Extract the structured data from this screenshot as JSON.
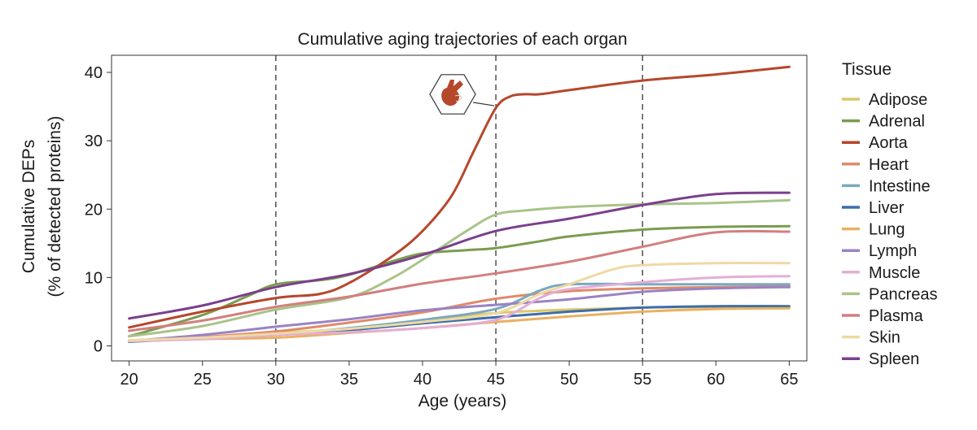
{
  "chart_data": {
    "type": "line",
    "title": "Cumulative aging trajectories of each organ",
    "xlabel": "Age (years)",
    "ylabel_lines": [
      "Cumulative DEPs",
      "(% of detected proteins)"
    ],
    "xlim": [
      18.8,
      66.2
    ],
    "ylim": [
      -2.2,
      42.5
    ],
    "xticks": [
      20,
      25,
      30,
      35,
      40,
      45,
      50,
      55,
      60,
      65
    ],
    "yticks": [
      0,
      10,
      20,
      30,
      40
    ],
    "vlines": [
      30,
      45,
      55
    ],
    "legend_title": "Tissue",
    "legend_position": "right",
    "annotation": {
      "label": "aorta-heart-icon",
      "series": "Aorta",
      "x": 45,
      "y": 35
    },
    "series": [
      {
        "name": "Adipose",
        "color": "#dcc76a",
        "points": [
          [
            20,
            0.8
          ],
          [
            25,
            1.2
          ],
          [
            30,
            1.9
          ],
          [
            35,
            2.5
          ],
          [
            40,
            3.7
          ],
          [
            45,
            4.8
          ],
          [
            50,
            5.3
          ],
          [
            55,
            5.6
          ],
          [
            60,
            5.7
          ],
          [
            65,
            5.8
          ]
        ]
      },
      {
        "name": "Adrenal",
        "color": "#7a9c4f",
        "points": [
          [
            20,
            1.4
          ],
          [
            25,
            4.5
          ],
          [
            28,
            7.2
          ],
          [
            30,
            9.0
          ],
          [
            33,
            9.6
          ],
          [
            35,
            10.4
          ],
          [
            38,
            12.4
          ],
          [
            40,
            13.5
          ],
          [
            43,
            14.0
          ],
          [
            45,
            14.3
          ],
          [
            48,
            15.3
          ],
          [
            50,
            16.0
          ],
          [
            55,
            17.0
          ],
          [
            60,
            17.4
          ],
          [
            65,
            17.5
          ]
        ]
      },
      {
        "name": "Aorta",
        "color": "#b5472c",
        "points": [
          [
            20,
            2.7
          ],
          [
            25,
            5.0
          ],
          [
            30,
            7.0
          ],
          [
            33,
            7.6
          ],
          [
            35,
            9.2
          ],
          [
            38,
            13.2
          ],
          [
            40,
            16.8
          ],
          [
            42,
            22.0
          ],
          [
            43.5,
            28.5
          ],
          [
            45,
            34.8
          ],
          [
            46,
            36.5
          ],
          [
            47,
            36.8
          ],
          [
            48,
            36.8
          ],
          [
            50,
            37.4
          ],
          [
            55,
            38.8
          ],
          [
            60,
            39.7
          ],
          [
            65,
            40.8
          ]
        ]
      },
      {
        "name": "Heart",
        "color": "#de8a6a",
        "points": [
          [
            20,
            0.7
          ],
          [
            25,
            1.3
          ],
          [
            30,
            2.1
          ],
          [
            35,
            3.4
          ],
          [
            40,
            4.9
          ],
          [
            45,
            6.9
          ],
          [
            50,
            8.0
          ],
          [
            55,
            8.4
          ],
          [
            60,
            8.6
          ],
          [
            65,
            8.7
          ]
        ]
      },
      {
        "name": "Intestine",
        "color": "#7aa8bf",
        "points": [
          [
            20,
            0.8
          ],
          [
            25,
            1.2
          ],
          [
            30,
            1.7
          ],
          [
            35,
            2.6
          ],
          [
            40,
            3.8
          ],
          [
            45,
            5.4
          ],
          [
            48,
            8.1
          ],
          [
            50,
            9.0
          ],
          [
            55,
            9.0
          ],
          [
            60,
            9.0
          ],
          [
            65,
            9.0
          ]
        ]
      },
      {
        "name": "Liver",
        "color": "#3d6ea8",
        "points": [
          [
            20,
            0.6
          ],
          [
            25,
            1.1
          ],
          [
            30,
            1.6
          ],
          [
            35,
            2.3
          ],
          [
            40,
            3.3
          ],
          [
            45,
            4.2
          ],
          [
            50,
            5.0
          ],
          [
            55,
            5.6
          ],
          [
            60,
            5.8
          ],
          [
            65,
            5.8
          ]
        ]
      },
      {
        "name": "Lung",
        "color": "#eab061",
        "points": [
          [
            20,
            0.8
          ],
          [
            25,
            1.0
          ],
          [
            30,
            1.2
          ],
          [
            35,
            1.9
          ],
          [
            40,
            2.6
          ],
          [
            45,
            3.5
          ],
          [
            50,
            4.3
          ],
          [
            55,
            5.0
          ],
          [
            60,
            5.4
          ],
          [
            65,
            5.5
          ]
        ]
      },
      {
        "name": "Lymph",
        "color": "#9a83c3",
        "points": [
          [
            20,
            0.7
          ],
          [
            25,
            1.6
          ],
          [
            30,
            2.8
          ],
          [
            35,
            3.9
          ],
          [
            40,
            5.2
          ],
          [
            45,
            6.0
          ],
          [
            50,
            6.8
          ],
          [
            55,
            7.9
          ],
          [
            60,
            8.4
          ],
          [
            65,
            8.6
          ]
        ]
      },
      {
        "name": "Muscle",
        "color": "#e3aed6",
        "points": [
          [
            20,
            0.7
          ],
          [
            25,
            1.0
          ],
          [
            30,
            1.6
          ],
          [
            35,
            2.0
          ],
          [
            40,
            2.6
          ],
          [
            45,
            3.8
          ],
          [
            48,
            7.0
          ],
          [
            50,
            8.3
          ],
          [
            55,
            9.3
          ],
          [
            60,
            10.0
          ],
          [
            65,
            10.2
          ]
        ]
      },
      {
        "name": "Pancreas",
        "color": "#a9c389",
        "points": [
          [
            20,
            1.4
          ],
          [
            25,
            2.9
          ],
          [
            30,
            5.3
          ],
          [
            35,
            7.1
          ],
          [
            38,
            10.0
          ],
          [
            40,
            12.6
          ],
          [
            43,
            16.8
          ],
          [
            45,
            19.2
          ],
          [
            47,
            19.8
          ],
          [
            50,
            20.3
          ],
          [
            55,
            20.7
          ],
          [
            60,
            20.9
          ],
          [
            65,
            21.3
          ]
        ]
      },
      {
        "name": "Plasma",
        "color": "#d27f7e",
        "points": [
          [
            20,
            2.2
          ],
          [
            25,
            3.7
          ],
          [
            30,
            5.7
          ],
          [
            35,
            7.2
          ],
          [
            40,
            9.1
          ],
          [
            45,
            10.6
          ],
          [
            50,
            12.3
          ],
          [
            55,
            14.5
          ],
          [
            60,
            16.6
          ],
          [
            65,
            16.7
          ]
        ]
      },
      {
        "name": "Skin",
        "color": "#efd9a3",
        "points": [
          [
            20,
            0.8
          ],
          [
            25,
            1.2
          ],
          [
            30,
            1.8
          ],
          [
            35,
            2.5
          ],
          [
            40,
            3.5
          ],
          [
            45,
            4.8
          ],
          [
            48,
            7.6
          ],
          [
            50,
            9.0
          ],
          [
            53,
            11.2
          ],
          [
            55,
            11.8
          ],
          [
            60,
            12.1
          ],
          [
            65,
            12.1
          ]
        ]
      },
      {
        "name": "Spleen",
        "color": "#7b3f8c",
        "points": [
          [
            20,
            4.0
          ],
          [
            25,
            5.9
          ],
          [
            30,
            8.6
          ],
          [
            35,
            10.5
          ],
          [
            40,
            13.3
          ],
          [
            45,
            16.8
          ],
          [
            50,
            18.6
          ],
          [
            55,
            20.6
          ],
          [
            60,
            22.2
          ],
          [
            65,
            22.4
          ]
        ]
      }
    ]
  }
}
